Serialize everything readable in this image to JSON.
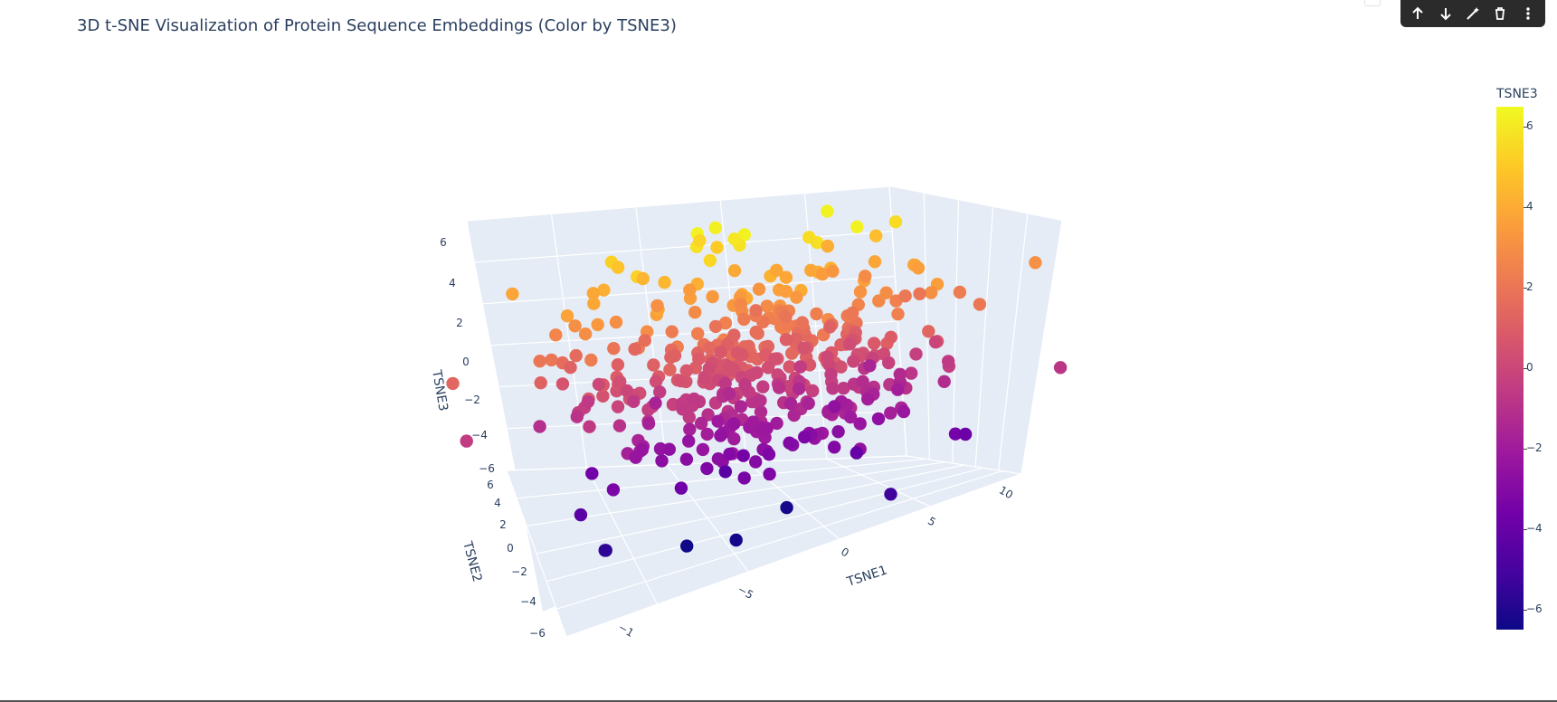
{
  "title": "3D t-SNE Visualization of Protein Sequence Embeddings (Color by TSNE3)",
  "toolbar": {
    "buttons": [
      {
        "name": "move-up-button",
        "icon": "arrow-up-icon"
      },
      {
        "name": "move-down-button",
        "icon": "arrow-down-icon"
      },
      {
        "name": "edit-button",
        "icon": "magic-wand-icon"
      },
      {
        "name": "delete-button",
        "icon": "trash-icon"
      },
      {
        "name": "more-button",
        "icon": "vertical-dots-icon"
      }
    ]
  },
  "colors": {
    "scene_bg": "#e5ecf6",
    "grid": "#ffffff",
    "text": "#2a3f5f",
    "toolbar": "#2b2b2b"
  },
  "chart_data": {
    "type": "scatter",
    "title": "3D t-SNE Visualization of Protein Sequence Embeddings (Color by TSNE3)",
    "axes": {
      "x": {
        "label": "TSNE1",
        "ticks": [
          "10",
          "5",
          "0",
          "−5",
          "−1"
        ]
      },
      "y": {
        "label": "TSNE2",
        "ticks": [
          "6",
          "4",
          "2",
          "0",
          "−2",
          "−4",
          "−6"
        ]
      },
      "z": {
        "label": "TSNE3",
        "ticks": [
          "6",
          "4",
          "2",
          "0",
          "−2",
          "−4",
          "−6"
        ]
      }
    },
    "colorbar": {
      "title": "TSNE3",
      "colorscale": "Plasma",
      "range": [
        -6.5,
        6.5
      ],
      "ticks": [
        "6",
        "4",
        "2",
        "0",
        "−2",
        "−4",
        "−6"
      ],
      "tick_values": [
        6,
        4,
        2,
        0,
        -2,
        -4,
        -6
      ]
    },
    "grid": true,
    "marker_color_by": "TSNE3",
    "approx_point_count": 420,
    "highlights": [
      {
        "x": -2.6,
        "y": -1.0,
        "z": 6.2
      },
      {
        "x": 2.2,
        "y": -2.0,
        "z": 6.3
      },
      {
        "x": -2.4,
        "y": 1.0,
        "z": -6.4
      }
    ]
  }
}
